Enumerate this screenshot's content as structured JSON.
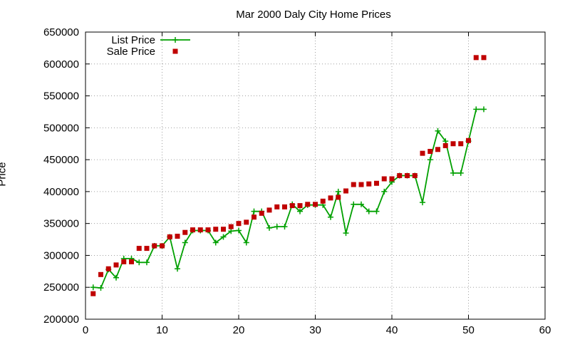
{
  "chart_data": {
    "type": "scatter",
    "title": "Mar 2000 Daly City Home Prices",
    "xlabel": "",
    "ylabel": "Price",
    "xlim": [
      0,
      60
    ],
    "ylim": [
      200000,
      650000
    ],
    "x_ticks": [
      0,
      10,
      20,
      30,
      40,
      50,
      60
    ],
    "y_ticks": [
      200000,
      250000,
      300000,
      350000,
      400000,
      450000,
      500000,
      550000,
      600000,
      650000
    ],
    "grid": true,
    "legend_position": "top-left",
    "series": [
      {
        "name": "List Price",
        "style": "linespoints",
        "marker": "plus",
        "color": "#00a000",
        "x": [
          1,
          2,
          3,
          4,
          5,
          6,
          7,
          8,
          9,
          10,
          11,
          12,
          13,
          14,
          15,
          16,
          17,
          18,
          19,
          20,
          21,
          22,
          23,
          24,
          25,
          26,
          27,
          28,
          29,
          30,
          31,
          32,
          33,
          34,
          35,
          36,
          37,
          38,
          39,
          40,
          41,
          42,
          43,
          44,
          45,
          46,
          47,
          48,
          49,
          50,
          51,
          52
        ],
        "y": [
          250000,
          249000,
          278000,
          265000,
          295000,
          295000,
          289000,
          289000,
          315000,
          315000,
          329000,
          279000,
          320000,
          339000,
          339000,
          339000,
          320000,
          329000,
          338000,
          339000,
          320000,
          369000,
          369000,
          343000,
          345000,
          345000,
          380000,
          369000,
          379000,
          379000,
          379000,
          360000,
          400000,
          335000,
          380000,
          380000,
          369000,
          369000,
          400000,
          415000,
          425000,
          425000,
          425000,
          383000,
          450000,
          495000,
          479000,
          429000,
          429000,
          479000,
          529000,
          529000
        ]
      },
      {
        "name": "Sale Price",
        "style": "points",
        "marker": "square",
        "color": "#c00000",
        "x": [
          1,
          2,
          3,
          4,
          5,
          6,
          7,
          8,
          9,
          10,
          11,
          12,
          13,
          14,
          15,
          16,
          17,
          18,
          19,
          20,
          21,
          22,
          23,
          24,
          25,
          26,
          27,
          28,
          29,
          30,
          31,
          32,
          33,
          34,
          35,
          36,
          37,
          38,
          39,
          40,
          41,
          42,
          43,
          44,
          45,
          46,
          47,
          48,
          49,
          50,
          51,
          52
        ],
        "y": [
          240000,
          270000,
          279000,
          285000,
          290000,
          290000,
          311000,
          311000,
          315000,
          315000,
          329000,
          330000,
          336000,
          340000,
          340000,
          340000,
          341000,
          341000,
          345000,
          350000,
          352000,
          360000,
          366000,
          371000,
          376000,
          376000,
          378000,
          378000,
          380000,
          380000,
          385000,
          390000,
          391000,
          401000,
          411000,
          411000,
          412000,
          413000,
          420000,
          420000,
          425000,
          425000,
          425000,
          460000,
          463000,
          466000,
          472000,
          475000,
          475000,
          480000,
          610000,
          610000
        ]
      }
    ]
  }
}
